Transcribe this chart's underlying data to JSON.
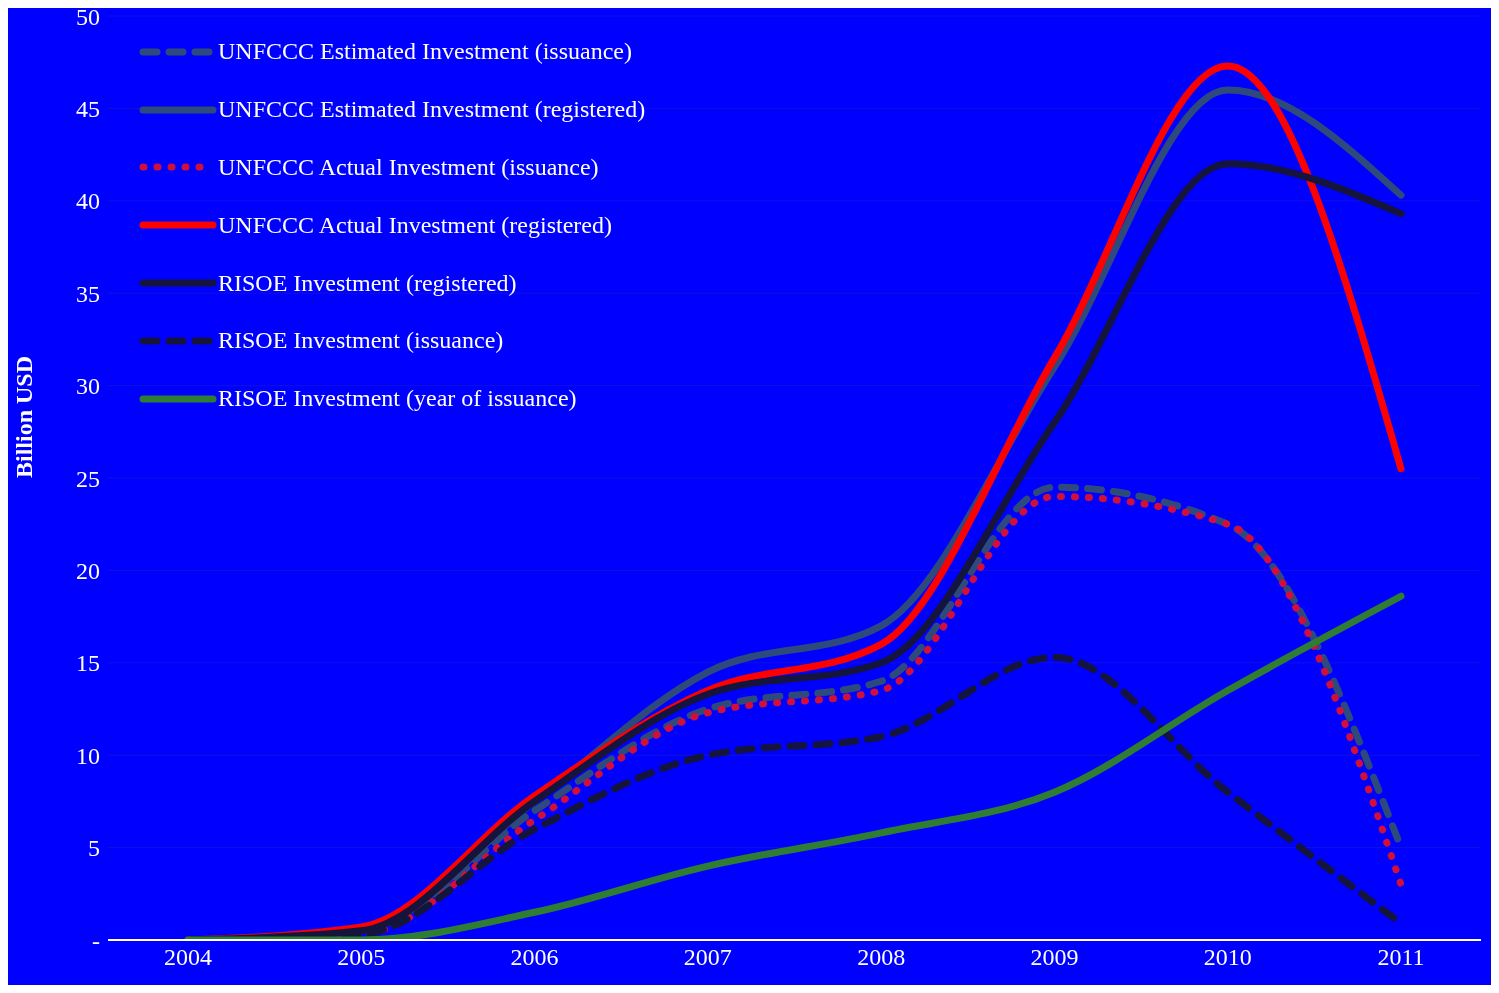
{
  "chart_data": {
    "type": "line",
    "ylabel": "Billion USD",
    "categories": [
      "2004",
      "2005",
      "2006",
      "2007",
      "2008",
      "2009",
      "2010",
      "2011"
    ],
    "ylim": [
      0,
      50
    ],
    "yticks": [
      {
        "value": 0,
        "label": "-"
      },
      5,
      10,
      15,
      20,
      25,
      30,
      35,
      40,
      45,
      50
    ],
    "grid": "y",
    "legend": "top left",
    "marker": "none",
    "series": [
      {
        "name": "UNFCCC Estimated Investment (issuance)",
        "color": "#2e4a7d",
        "line_style": "dashed",
        "values": [
          0,
          0.3,
          7,
          12.5,
          14,
          24.5,
          22.5,
          5
        ]
      },
      {
        "name": "UNFCCC Estimated Investment (registered)",
        "color": "#2e4a7d",
        "line_style": "solid",
        "values": [
          0,
          0.5,
          7.5,
          14.5,
          17,
          31,
          46,
          40.3
        ]
      },
      {
        "name": "UNFCCC Actual Investment (issuance)",
        "color": "#d0103a",
        "line_style": "dotted",
        "values": [
          0,
          0.3,
          6.5,
          12.3,
          13.5,
          24,
          22.5,
          3
        ]
      },
      {
        "name": "UNFCCC Actual Investment (registered)",
        "color": "#ff0000",
        "line_style": "solid",
        "values": [
          0,
          0.7,
          7.8,
          13.5,
          16,
          31.5,
          47.3,
          25.5
        ]
      },
      {
        "name": "RISOE Investment (registered)",
        "color": "#14143c",
        "line_style": "solid",
        "values": [
          0,
          0.5,
          7.5,
          13.3,
          15,
          28,
          42,
          39.3
        ]
      },
      {
        "name": "RISOE Investment (issuance)",
        "color": "#14143c",
        "line_style": "dashed",
        "values": [
          0,
          0.3,
          6,
          10,
          11,
          15.3,
          8,
          0.9
        ]
      },
      {
        "name": "RISOE Investment (year of issuance)",
        "color": "#2e7d32",
        "line_style": "solid",
        "values": [
          0,
          0,
          1.5,
          4,
          5.8,
          8,
          13.5,
          18.6
        ]
      }
    ]
  }
}
